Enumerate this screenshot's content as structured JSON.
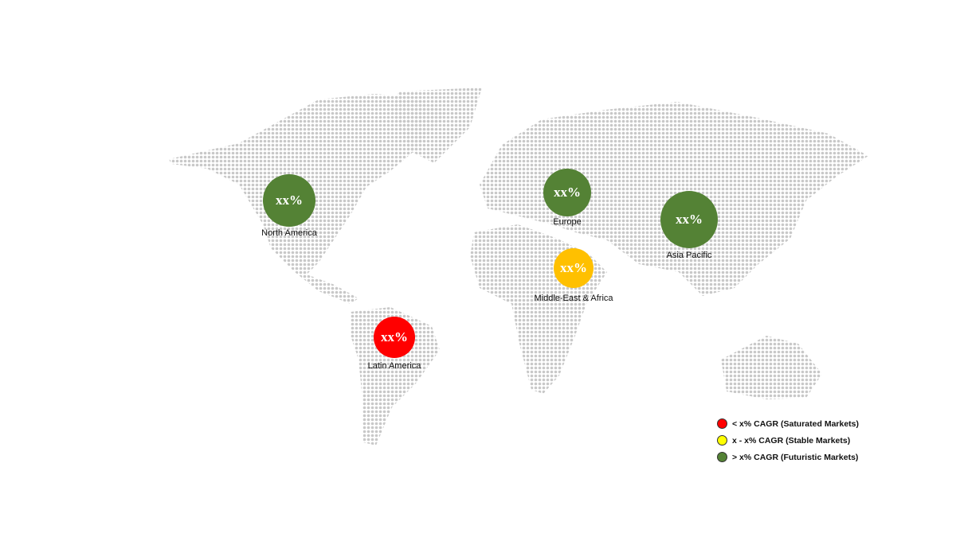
{
  "colors": {
    "saturated": "#ff0000",
    "stable": "#ffc000",
    "futuristic": "#548235",
    "legend_stable": "#ffff00",
    "map_dots": "#c8c8c8"
  },
  "regions": [
    {
      "id": "north-america",
      "name": "North America",
      "value": "xx%",
      "category": "futuristic"
    },
    {
      "id": "europe",
      "name": "Europe",
      "value": "xx%",
      "category": "futuristic"
    },
    {
      "id": "asia-pacific",
      "name": "Asia Pacific",
      "value": "xx%",
      "category": "futuristic"
    },
    {
      "id": "middle-east-africa",
      "name": "Middle-East & Africa",
      "value": "xx%",
      "category": "stable"
    },
    {
      "id": "latin-america",
      "name": "Latin America",
      "value": "xx%",
      "category": "saturated"
    }
  ],
  "legend": [
    {
      "label": "< x% CAGR (Saturated Markets)",
      "color": "#ff0000"
    },
    {
      "label": "x - x% CAGR (Stable Markets)",
      "color": "#ffff00"
    },
    {
      "label": "> x% CAGR (Futuristic Markets)",
      "color": "#548235"
    }
  ]
}
